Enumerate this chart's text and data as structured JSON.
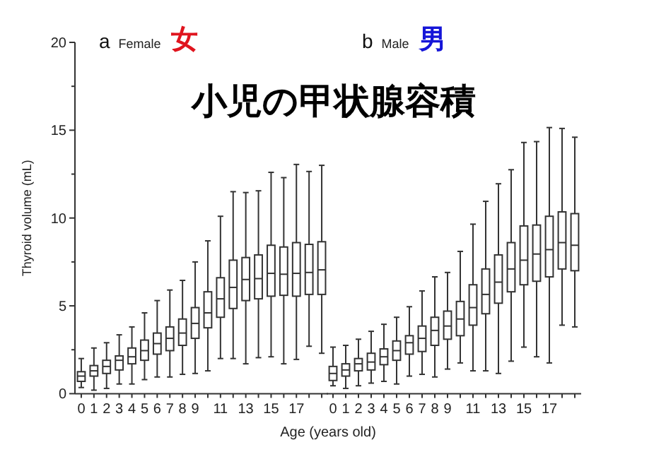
{
  "chart_data": [
    {
      "type": "box",
      "title": "小児の甲状腺容積",
      "annotations": [
        "a",
        "Female",
        "女"
      ],
      "ylabel": "Thyroid volume (mL)",
      "xlabel": "Age (years old)",
      "categories": [
        "0",
        "1",
        "2",
        "3",
        "4",
        "5",
        "6",
        "7",
        "8",
        "9",
        null,
        "11",
        null,
        "13",
        null,
        "15",
        null,
        "17",
        null,
        null
      ],
      "ylim": [
        0,
        20
      ],
      "yticks": [
        0,
        {
          "value": 2.5,
          "label": null
        },
        5,
        {
          "value": 7.5,
          "label": null
        },
        10,
        {
          "value": 12.5,
          "label": null
        },
        15,
        {
          "value": 17.5,
          "label": null
        },
        20
      ],
      "boxes": [
        {
          "low": 0.35,
          "q1": 0.7,
          "median": 1.0,
          "q3": 1.25,
          "high": 2.0
        },
        {
          "low": 0.2,
          "q1": 1.0,
          "median": 1.3,
          "q3": 1.6,
          "high": 2.6
        },
        {
          "low": 0.3,
          "q1": 1.15,
          "median": 1.55,
          "q3": 1.9,
          "high": 2.9
        },
        {
          "low": 0.55,
          "q1": 1.35,
          "median": 1.9,
          "q3": 2.15,
          "high": 3.35
        },
        {
          "low": 0.55,
          "q1": 1.7,
          "median": 2.1,
          "q3": 2.6,
          "high": 3.8
        },
        {
          "low": 0.8,
          "q1": 1.9,
          "median": 2.45,
          "q3": 3.05,
          "high": 4.6
        },
        {
          "low": 0.95,
          "q1": 2.25,
          "median": 2.85,
          "q3": 3.45,
          "high": 5.3
        },
        {
          "low": 0.95,
          "q1": 2.45,
          "median": 3.15,
          "q3": 3.8,
          "high": 5.9
        },
        {
          "low": 1.1,
          "q1": 2.75,
          "median": 3.45,
          "q3": 4.25,
          "high": 6.45
        },
        {
          "low": 1.15,
          "q1": 3.15,
          "median": 4.0,
          "q3": 4.9,
          "high": 7.5
        },
        {
          "low": 1.3,
          "q1": 3.75,
          "median": 4.6,
          "q3": 5.8,
          "high": 8.7
        },
        {
          "low": 2.0,
          "q1": 4.35,
          "median": 5.4,
          "q3": 6.6,
          "high": 10.1
        },
        {
          "low": 2.0,
          "q1": 4.85,
          "median": 6.05,
          "q3": 7.6,
          "high": 11.5
        },
        {
          "low": 1.7,
          "q1": 5.3,
          "median": 6.5,
          "q3": 7.75,
          "high": 11.45
        },
        {
          "low": 2.05,
          "q1": 5.4,
          "median": 6.55,
          "q3": 7.9,
          "high": 11.55
        },
        {
          "low": 2.1,
          "q1": 5.55,
          "median": 6.85,
          "q3": 8.45,
          "high": 12.6
        },
        {
          "low": 1.7,
          "q1": 5.6,
          "median": 6.8,
          "q3": 8.35,
          "high": 12.3
        },
        {
          "low": 1.95,
          "q1": 5.55,
          "median": 6.85,
          "q3": 8.6,
          "high": 13.05
        },
        {
          "low": 2.7,
          "q1": 5.65,
          "median": 6.9,
          "q3": 8.5,
          "high": 12.65
        },
        {
          "low": 2.3,
          "q1": 5.65,
          "median": 7.05,
          "q3": 8.65,
          "high": 13.0
        }
      ]
    },
    {
      "type": "box",
      "annotations": [
        "b",
        "Male",
        "男"
      ],
      "tick_labels": "x",
      "categories": [
        "0",
        "1",
        "2",
        "3",
        "4",
        "5",
        "6",
        "7",
        "8",
        "9",
        null,
        "11",
        null,
        "13",
        null,
        "15",
        null,
        "17",
        null,
        null
      ],
      "ylim": [
        0,
        20
      ],
      "boxes": [
        {
          "low": 0.45,
          "q1": 0.75,
          "median": 1.15,
          "q3": 1.55,
          "high": 2.65
        },
        {
          "low": 0.3,
          "q1": 1.0,
          "median": 1.35,
          "q3": 1.7,
          "high": 2.75
        },
        {
          "low": 0.45,
          "q1": 1.3,
          "median": 1.7,
          "q3": 2.0,
          "high": 3.1
        },
        {
          "low": 0.6,
          "q1": 1.35,
          "median": 1.8,
          "q3": 2.3,
          "high": 3.55
        },
        {
          "low": 0.7,
          "q1": 1.65,
          "median": 2.1,
          "q3": 2.55,
          "high": 3.95
        },
        {
          "low": 0.55,
          "q1": 1.9,
          "median": 2.45,
          "q3": 3.0,
          "high": 4.35
        },
        {
          "low": 1.0,
          "q1": 2.25,
          "median": 2.9,
          "q3": 3.3,
          "high": 4.95
        },
        {
          "low": 1.1,
          "q1": 2.4,
          "median": 3.15,
          "q3": 3.85,
          "high": 5.85
        },
        {
          "low": 0.95,
          "q1": 2.75,
          "median": 3.6,
          "q3": 4.35,
          "high": 6.65
        },
        {
          "low": 1.4,
          "q1": 3.1,
          "median": 3.85,
          "q3": 4.7,
          "high": 6.9
        },
        {
          "low": 1.75,
          "q1": 3.3,
          "median": 4.25,
          "q3": 5.25,
          "high": 8.1
        },
        {
          "low": 1.3,
          "q1": 3.9,
          "median": 4.9,
          "q3": 6.2,
          "high": 9.65
        },
        {
          "low": 1.3,
          "q1": 4.55,
          "median": 5.65,
          "q3": 7.1,
          "high": 10.95
        },
        {
          "low": 1.15,
          "q1": 5.15,
          "median": 6.35,
          "q3": 7.9,
          "high": 11.95
        },
        {
          "low": 1.85,
          "q1": 5.8,
          "median": 7.1,
          "q3": 8.6,
          "high": 12.75
        },
        {
          "low": 2.65,
          "q1": 6.2,
          "median": 7.6,
          "q3": 9.55,
          "high": 14.3
        },
        {
          "low": 2.1,
          "q1": 6.4,
          "median": 7.95,
          "q3": 9.6,
          "high": 14.35
        },
        {
          "low": 1.75,
          "q1": 6.65,
          "median": 8.2,
          "q3": 10.1,
          "high": 15.15
        },
        {
          "low": 3.9,
          "q1": 7.1,
          "median": 8.6,
          "q3": 10.35,
          "high": 15.1
        },
        {
          "low": 3.8,
          "q1": 7.0,
          "median": 8.45,
          "q3": 10.25,
          "high": 14.6
        }
      ]
    }
  ]
}
